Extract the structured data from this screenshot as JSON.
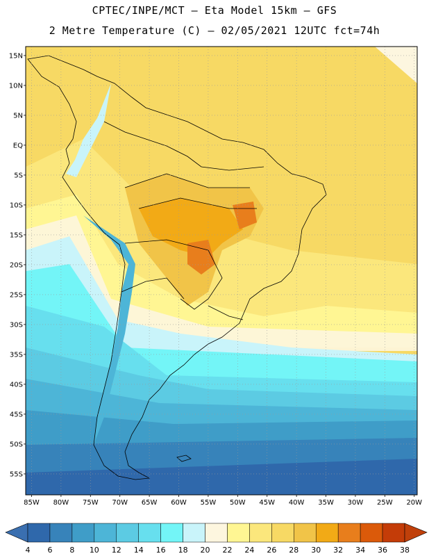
{
  "header": {
    "line1": "CPTEC/INPE/MCT –  Eta Model 15km – GFS",
    "line2": "2 Metre Temperature (C) – 02/05/2021 12UTC fct=74h"
  },
  "map": {
    "lat_labels": [
      "15N",
      "10N",
      "5N",
      "EQ",
      "5S",
      "10S",
      "15S",
      "20S",
      "25S",
      "30S",
      "35S",
      "40S",
      "45S",
      "50S",
      "55S"
    ],
    "lat_values": [
      15,
      10,
      5,
      0,
      -5,
      -10,
      -15,
      -20,
      -25,
      -30,
      -35,
      -40,
      -45,
      -50,
      -55
    ],
    "lon_labels": [
      "85W",
      "80W",
      "75W",
      "70W",
      "65W",
      "60W",
      "55W",
      "50W",
      "45W",
      "40W",
      "35W",
      "30W",
      "25W",
      "20W"
    ],
    "lon_values": [
      -85,
      -80,
      -75,
      -70,
      -65,
      -60,
      -55,
      -50,
      -45,
      -40,
      -35,
      -30,
      -25,
      -20
    ],
    "lon_range": [
      -86,
      -19.5
    ],
    "lat_range": [
      -58.5,
      16.5
    ]
  },
  "colorbar": {
    "labels": [
      "4",
      "6",
      "8",
      "10",
      "12",
      "14",
      "16",
      "18",
      "20",
      "22",
      "24",
      "26",
      "28",
      "30",
      "32",
      "34",
      "36",
      "38"
    ],
    "under_color": "#3a6fb0",
    "over_color": "#c0400a",
    "colors": [
      "#2f68ab",
      "#3783ba",
      "#3f9dc8",
      "#4db5d7",
      "#5ccbe3",
      "#67dfee",
      "#73f5f7",
      "#c9f4fa",
      "#fdf6df",
      "#fff693",
      "#fbe77c",
      "#f7d964",
      "#f1c448",
      "#f2aa16",
      "#e87e1c",
      "#db5a0a",
      "#c43c08"
    ]
  }
}
